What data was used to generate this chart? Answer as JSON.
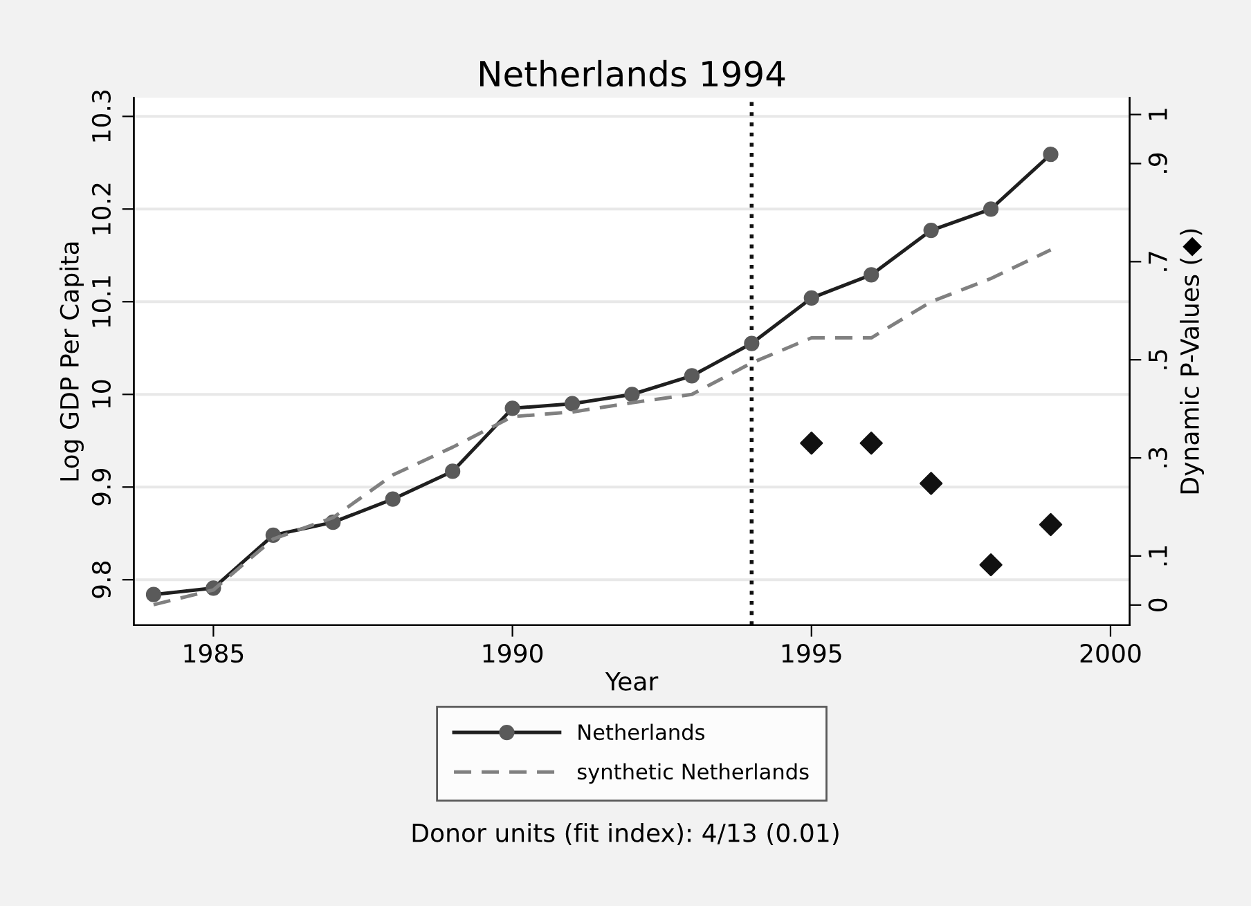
{
  "chart_data": {
    "type": "line",
    "title": "Netherlands 1994",
    "xlabel": "Year",
    "ylabel": "Log GDP Per Capita",
    "y2label": "Dynamic P-Values (◆)",
    "x": [
      1984,
      1985,
      1986,
      1987,
      1988,
      1989,
      1990,
      1991,
      1992,
      1993,
      1994,
      1995,
      1996,
      1997,
      1998,
      1999
    ],
    "series": [
      {
        "name": "Netherlands",
        "color": "#1f1f1f",
        "marker": "circle",
        "line_style": "solid",
        "values": [
          9.784,
          9.791,
          9.848,
          9.862,
          9.887,
          9.917,
          9.985,
          9.99,
          10.0,
          10.02,
          10.055,
          10.104,
          10.129,
          10.177,
          10.2,
          10.259
        ]
      },
      {
        "name": "synthetic Netherlands",
        "color": "#808080",
        "marker": "none",
        "line_style": "dashed",
        "values": [
          9.773,
          9.789,
          9.844,
          9.867,
          9.913,
          9.943,
          9.976,
          9.981,
          9.991,
          10.0,
          10.034,
          10.061,
          10.061,
          10.1,
          10.125,
          10.156
        ]
      },
      {
        "type": "scatter",
        "axis": "y2",
        "color": "#111111",
        "marker": "diamond",
        "x": [
          1995,
          1996,
          1997,
          1998,
          1999
        ],
        "values": [
          0.33,
          0.33,
          0.248,
          0.082,
          0.164
        ]
      }
    ],
    "xlim": [
      1983.67,
      2000.32
    ],
    "xticks": [
      1985,
      1990,
      1995,
      2000
    ],
    "ylim": [
      9.751,
      10.32
    ],
    "yticks": [
      9.8,
      9.9,
      10,
      10.1,
      10.2,
      10.3
    ],
    "y2lim": [
      -0.041,
      1.034
    ],
    "y2ticks": [
      0,
      {
        "value": 0.1,
        "label": ".1"
      },
      {
        "value": 0.3,
        "label": ".3"
      },
      {
        "value": 0.5,
        "label": ".5"
      },
      {
        "value": 0.7,
        "label": ".7"
      },
      {
        "value": 0.9,
        "label": ".9"
      },
      1
    ],
    "ref_lines": [
      {
        "axis": "x",
        "value": 1994,
        "color": "#111111",
        "line_style": "dotted"
      }
    ],
    "grid": "y",
    "legend": "bottom",
    "annotations": [
      "Donor units (fit index): 4/13 (0.01)"
    ]
  }
}
